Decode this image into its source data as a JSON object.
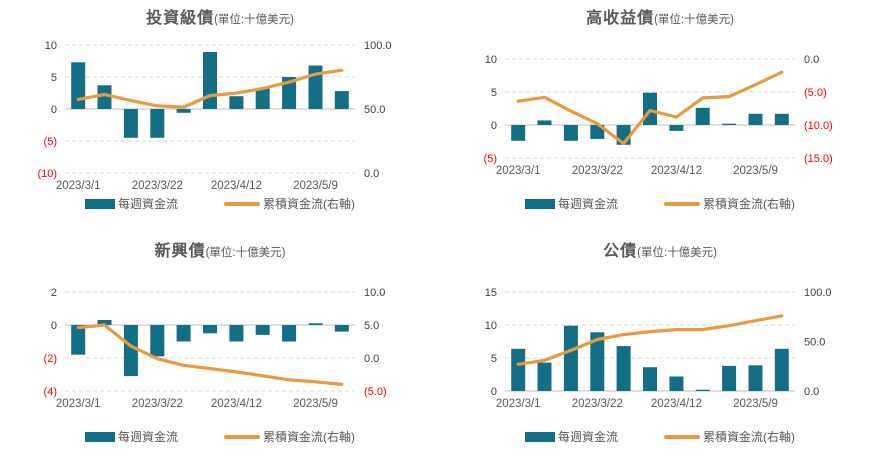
{
  "page": {
    "background": "#FFFFFF"
  },
  "colors": {
    "bar": "#146F86",
    "line": "#E79A3F",
    "negative_label": "#FF0000",
    "tick_label": "#404040",
    "x_label": "#595959",
    "title": "#595959",
    "grid": "#D9D9D9",
    "zero_line": "#C0C0C0"
  },
  "chart_data": [
    {
      "type": "bar+line",
      "title": "投資級債",
      "title_unit": "(單位:十億美元)",
      "x_tick_labels": [
        "2023/3/1",
        "2023/3/22",
        "2023/4/12",
        "2023/5/9"
      ],
      "x_tick_indices": [
        0,
        3,
        6,
        9
      ],
      "left_axis": {
        "min": -10,
        "max": 10,
        "tick_values": [
          10,
          5,
          0,
          -5,
          -10
        ],
        "tick_labels": [
          "10",
          "5",
          "0",
          "(5)",
          "(10)"
        ]
      },
      "right_axis": {
        "min": 0,
        "max": 100,
        "tick_values": [
          100,
          50,
          0
        ],
        "tick_labels": [
          "100.0",
          "50.0",
          "0.0"
        ]
      },
      "series": [
        {
          "name": "每週資金流",
          "type": "bar",
          "axis": "left",
          "values": [
            7.3,
            3.7,
            -4.5,
            -4.5,
            -0.6,
            8.9,
            2.0,
            3.2,
            5.0,
            6.8,
            2.8
          ]
        },
        {
          "name": "累積資金流(右軸)",
          "type": "line",
          "axis": "right",
          "values": [
            57.5,
            61.3,
            56.6,
            52.4,
            51.5,
            60.5,
            62.4,
            66.0,
            71.0,
            77.3,
            80.3
          ]
        }
      ]
    },
    {
      "type": "bar+line",
      "title": "高收益債",
      "title_unit": "(單位:十億美元)",
      "x_tick_labels": [
        "2023/3/1",
        "2023/3/22",
        "2023/4/12",
        "2023/5/9"
      ],
      "x_tick_indices": [
        0,
        3,
        6,
        9
      ],
      "left_axis": {
        "min": -5,
        "max": 10,
        "tick_values": [
          10,
          5,
          0,
          -5
        ],
        "tick_labels": [
          "10",
          "5",
          "0",
          "(5)"
        ]
      },
      "right_axis": {
        "min": -15,
        "max": 0,
        "tick_values": [
          0,
          -5,
          -10,
          -15
        ],
        "tick_labels": [
          "0.0",
          "(5.0)",
          "(10.0)",
          "(15.0)"
        ]
      },
      "series": [
        {
          "name": "每週資金流",
          "type": "bar",
          "axis": "left",
          "values": [
            -2.4,
            0.7,
            -2.4,
            -2.1,
            -3.0,
            4.9,
            -0.9,
            2.6,
            0.2,
            1.7,
            1.7
          ]
        },
        {
          "name": "累積資金流(右軸)",
          "type": "line",
          "axis": "right",
          "values": [
            -6.4,
            -5.8,
            -7.9,
            -9.8,
            -12.8,
            -7.8,
            -8.8,
            -5.9,
            -5.7,
            -3.9,
            -2.0
          ]
        }
      ]
    },
    {
      "type": "bar+line",
      "title": "新興債",
      "title_unit": "(單位:十億美元)",
      "x_tick_labels": [
        "2023/3/1",
        "2023/3/22",
        "2023/4/12",
        "2023/5/9"
      ],
      "x_tick_indices": [
        0,
        3,
        6,
        9
      ],
      "left_axis": {
        "min": -4,
        "max": 2,
        "tick_values": [
          2,
          0,
          -2,
          -4
        ],
        "tick_labels": [
          "2",
          "0",
          "(2)",
          "(4)"
        ]
      },
      "right_axis": {
        "min": -5,
        "max": 10,
        "tick_values": [
          10,
          5,
          0,
          -5
        ],
        "tick_labels": [
          "10.0",
          "5.0",
          "0.0",
          "(5.0)"
        ]
      },
      "series": [
        {
          "name": "每週資金流",
          "type": "bar",
          "axis": "left",
          "values": [
            -1.8,
            0.3,
            -3.1,
            -1.9,
            -1.0,
            -0.5,
            -1.0,
            -0.6,
            -1.0,
            0.1,
            -0.4
          ]
        },
        {
          "name": "累積資金流(右軸)",
          "type": "line",
          "axis": "right",
          "values": [
            4.6,
            5.0,
            1.8,
            -0.1,
            -1.1,
            -1.6,
            -2.1,
            -2.7,
            -3.3,
            -3.6,
            -4.0
          ]
        }
      ]
    },
    {
      "type": "bar+line",
      "title": "公債",
      "title_unit": "(單位:十億美元)",
      "x_tick_labels": [
        "2023/3/1",
        "2023/3/22",
        "2023/4/12",
        "2023/5/9"
      ],
      "x_tick_indices": [
        0,
        3,
        6,
        9
      ],
      "left_axis": {
        "min": 0,
        "max": 15,
        "tick_values": [
          15,
          10,
          5,
          0
        ],
        "tick_labels": [
          "15",
          "10",
          "5",
          "0"
        ]
      },
      "right_axis": {
        "min": 0,
        "max": 100,
        "tick_values": [
          100,
          50,
          0
        ],
        "tick_labels": [
          "100.0",
          "50.0",
          "0.0"
        ]
      },
      "series": [
        {
          "name": "每週資金流",
          "type": "bar",
          "axis": "left",
          "values": [
            6.4,
            4.3,
            9.9,
            8.9,
            6.8,
            3.6,
            2.2,
            0.2,
            3.8,
            3.9,
            6.4
          ]
        },
        {
          "name": "累積資金流(右軸)",
          "type": "line",
          "axis": "right",
          "values": [
            27,
            31,
            41,
            52,
            57,
            60,
            62,
            62,
            66,
            71,
            76
          ]
        }
      ]
    }
  ]
}
